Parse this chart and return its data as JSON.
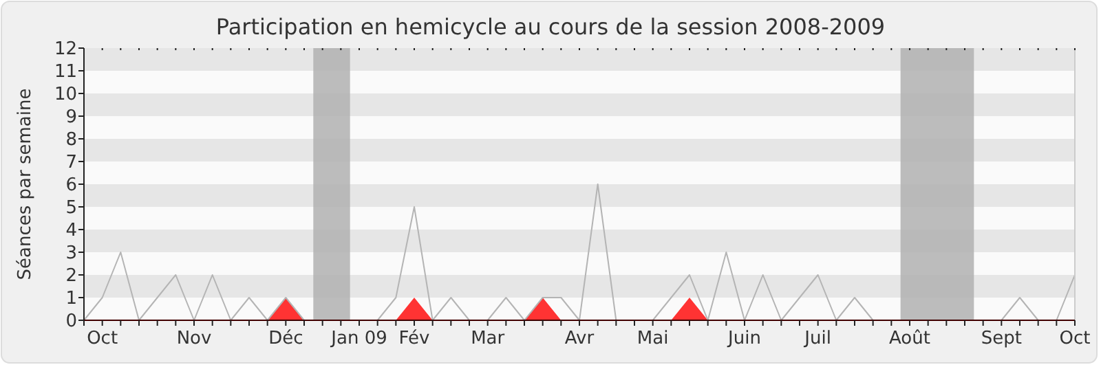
{
  "chart_data": {
    "type": "line",
    "title": "Participation en hemicycle au cours de la session 2008-2009",
    "ylabel": "Séances par semaine",
    "categories": [
      null,
      "Oct",
      null,
      null,
      null,
      null,
      "Nov",
      null,
      null,
      null,
      null,
      "Déc",
      null,
      null,
      null,
      "Jan 09",
      null,
      null,
      "Fév",
      null,
      null,
      null,
      "Mar",
      null,
      null,
      null,
      null,
      "Avr",
      null,
      null,
      null,
      "Mai",
      null,
      null,
      null,
      null,
      "Juin",
      null,
      null,
      null,
      "Juil",
      null,
      null,
      null,
      null,
      "Août",
      null,
      null,
      null,
      null,
      "Sept",
      null,
      null,
      null,
      "Oct"
    ],
    "series": [
      {
        "type": "area",
        "color": "#ff3333",
        "values": [
          0,
          0,
          0,
          0,
          0,
          0,
          0,
          0,
          0,
          0,
          0,
          1,
          0,
          0,
          0,
          0,
          0,
          0,
          1,
          0,
          0,
          0,
          0,
          0,
          0,
          1,
          0,
          0,
          0,
          0,
          0,
          0,
          0,
          1,
          0,
          0,
          0,
          0,
          0,
          0,
          0,
          0,
          0,
          0,
          0,
          0,
          0,
          0,
          0,
          0,
          0,
          0,
          0,
          0,
          0
        ]
      },
      {
        "color": "#b4b4b4",
        "values": [
          0,
          1,
          3,
          0,
          1,
          2,
          0,
          2,
          0,
          1,
          0,
          1,
          0,
          0,
          0,
          0,
          0,
          1,
          5,
          0,
          1,
          0,
          0,
          1,
          0,
          1,
          1,
          0,
          6,
          0,
          0,
          0,
          1,
          2,
          0,
          3,
          0,
          2,
          0,
          1,
          2,
          0,
          1,
          0,
          0,
          0,
          0,
          0,
          0,
          0,
          0,
          1,
          0,
          0,
          2
        ]
      }
    ],
    "ylim": [
      0,
      12
    ],
    "yticks": [
      0,
      1,
      2,
      3,
      4,
      5,
      6,
      7,
      8,
      9,
      10,
      11,
      12
    ]
  }
}
